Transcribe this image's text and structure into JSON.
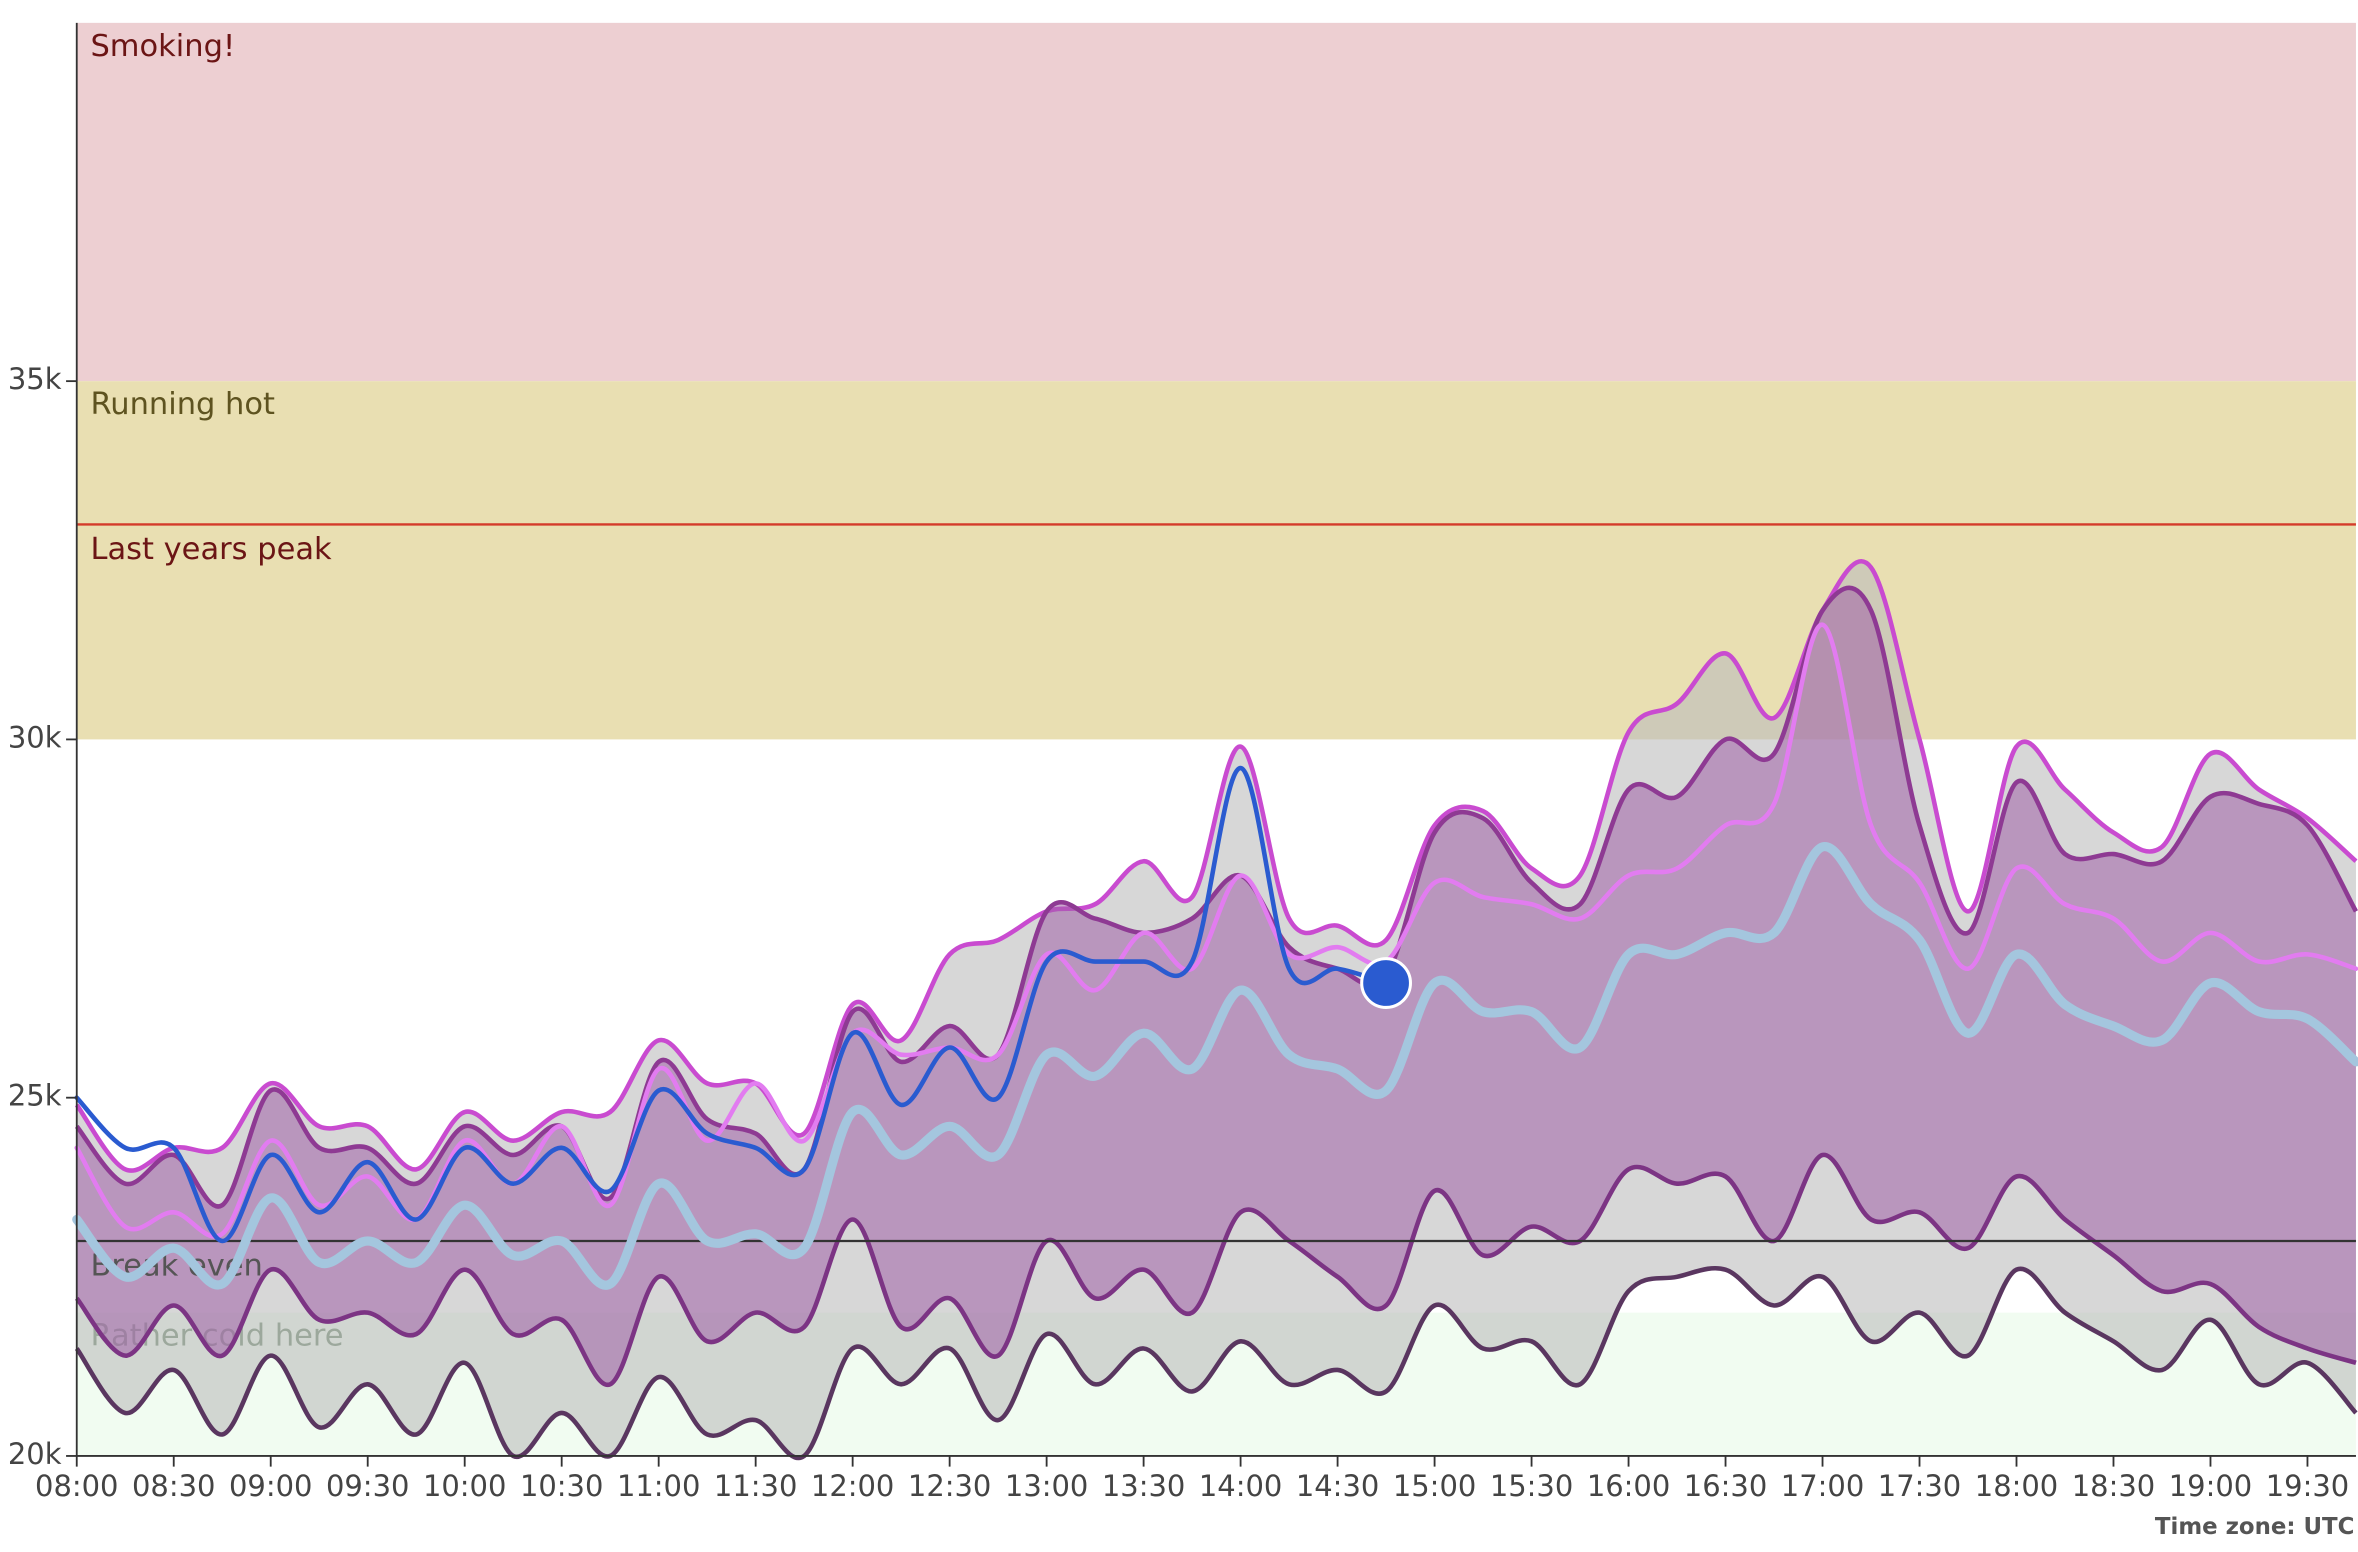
{
  "chart_data": {
    "type": "line",
    "x": [
      "08:00",
      "08:15",
      "08:30",
      "08:45",
      "09:00",
      "09:15",
      "09:30",
      "09:45",
      "10:00",
      "10:15",
      "10:30",
      "10:45",
      "11:00",
      "11:15",
      "11:30",
      "11:45",
      "12:00",
      "12:15",
      "12:30",
      "12:45",
      "13:00",
      "13:15",
      "13:30",
      "13:45",
      "14:00",
      "14:15",
      "14:30",
      "14:45",
      "15:00",
      "15:15",
      "15:30",
      "15:45",
      "16:00",
      "16:15",
      "16:30",
      "16:45",
      "17:00",
      "17:15",
      "17:30",
      "17:45",
      "18:00",
      "18:15",
      "18:30",
      "18:45",
      "19:00",
      "19:15",
      "19:30",
      "19:45"
    ],
    "xlim": [
      "08:00",
      "19:45"
    ],
    "xticks": [
      "08:00",
      "08:30",
      "09:00",
      "09:30",
      "10:00",
      "10:30",
      "11:00",
      "11:30",
      "12:00",
      "12:30",
      "13:00",
      "13:30",
      "14:00",
      "14:30",
      "15:00",
      "15:30",
      "16:00",
      "16:30",
      "17:00",
      "17:30",
      "18:00",
      "18:30",
      "19:00",
      "19:30"
    ],
    "ylim": [
      20000,
      40000
    ],
    "yticks": [
      {
        "value": 20000,
        "label": "20k"
      },
      {
        "value": 25000,
        "label": "25k"
      },
      {
        "value": 30000,
        "label": "30k"
      },
      {
        "value": 35000,
        "label": "35k"
      }
    ],
    "bands": [
      {
        "label": "Smoking!",
        "from": 35000,
        "to": 40000,
        "color": "#edcfd2",
        "text_color": "#6b1515"
      },
      {
        "label": "Running hot",
        "from": 30000,
        "to": 35000,
        "color": "#e9dfb2",
        "text_color": "#5e5320"
      },
      {
        "label": "Rather cold here",
        "from": 20000,
        "to": 22000,
        "color": "#f1fcf1",
        "text_color": "#6d8a6d"
      }
    ],
    "lines": [
      {
        "label": "Last years peak",
        "value": 33000,
        "color": "#d43b2a",
        "text_color": "#6b1515"
      },
      {
        "label": "Break even",
        "value": 23000,
        "color": "#333333",
        "text_color": "#555555"
      }
    ],
    "areas": [
      {
        "color": "#bdbdbd",
        "opacity": 0.6,
        "upper_color": "#c94bd0",
        "lower_color": "#5a3660",
        "upper": [
          24900,
          24000,
          24300,
          24300,
          25200,
          24600,
          24600,
          24000,
          24800,
          24400,
          24800,
          24800,
          25800,
          25200,
          25200,
          24500,
          26300,
          25800,
          27000,
          27200,
          27600,
          27700,
          28300,
          27800,
          29900,
          27500,
          27400,
          27200,
          28800,
          29000,
          28200,
          28100,
          30100,
          30500,
          31200,
          30300,
          31800,
          32400,
          30000,
          27600,
          29900,
          29300,
          28700,
          28500,
          29800,
          29300,
          28900,
          28300
        ],
        "lower": [
          21500,
          20600,
          21200,
          20300,
          21400,
          20400,
          21000,
          20300,
          21300,
          20000,
          20600,
          20000,
          21100,
          20300,
          20500,
          20000,
          21500,
          21000,
          21500,
          20500,
          21700,
          21000,
          21500,
          20900,
          21600,
          21000,
          21200,
          20900,
          22100,
          21500,
          21600,
          21000,
          22300,
          22500,
          22600,
          22100,
          22500,
          21600,
          22000,
          21400,
          22600,
          22000,
          21600,
          21200,
          21900,
          21000,
          21300,
          20600
        ]
      },
      {
        "color": "#a061a8",
        "opacity": 0.55,
        "upper_color": "#8e3a93",
        "lower_color": "#7c3484",
        "upper": [
          24600,
          23800,
          24200,
          23500,
          25100,
          24300,
          24300,
          23800,
          24600,
          24200,
          24600,
          23600,
          25500,
          24700,
          24500,
          24000,
          26200,
          25500,
          26000,
          25600,
          27600,
          27500,
          27300,
          27500,
          28100,
          27100,
          26800,
          26700,
          28700,
          28900,
          28000,
          27700,
          29300,
          29200,
          30000,
          29800,
          31800,
          31800,
          28800,
          27300,
          29400,
          28400,
          28400,
          28300,
          29200,
          29100,
          28800,
          27600
        ],
        "lower": [
          22200,
          21400,
          22100,
          21400,
          22600,
          21900,
          22000,
          21700,
          22600,
          21700,
          21900,
          21000,
          22500,
          21600,
          22000,
          21800,
          23300,
          21800,
          22200,
          21400,
          23000,
          22200,
          22600,
          22000,
          23400,
          23000,
          22500,
          22100,
          23700,
          22800,
          23200,
          23000,
          24000,
          23800,
          23900,
          23000,
          24200,
          23300,
          23400,
          22900,
          23900,
          23300,
          22800,
          22300,
          22400,
          21800,
          21500,
          21300
        ]
      }
    ],
    "series": [
      {
        "color": "#e27cf0",
        "line_width": 3,
        "values": [
          24300,
          23200,
          23400,
          23100,
          24400,
          23500,
          23900,
          23300,
          24400,
          23800,
          24600,
          23500,
          25400,
          24400,
          25200,
          24400,
          25900,
          25600,
          25700,
          25600,
          27000,
          26500,
          27300,
          26800,
          28100,
          27000,
          27100,
          26900,
          28000,
          27800,
          27700,
          27500,
          28100,
          28200,
          28800,
          29100,
          31600,
          28800,
          28000,
          26800,
          28200,
          27700,
          27500,
          26900,
          27300,
          26900,
          27000,
          26800
        ]
      },
      {
        "color": "#a4c6de",
        "line_width": 6,
        "values": [
          23300,
          22500,
          22900,
          22400,
          23600,
          22700,
          23000,
          22700,
          23500,
          22800,
          23000,
          22400,
          23800,
          23000,
          23100,
          22900,
          24800,
          24200,
          24600,
          24200,
          25600,
          25300,
          25900,
          25400,
          26500,
          25600,
          25400,
          25100,
          26600,
          26200,
          26200,
          25700,
          27000,
          27000,
          27300,
          27300,
          28500,
          27700,
          27200,
          25900,
          27000,
          26300,
          26000,
          25800,
          26600,
          26200,
          26100,
          25500
        ]
      },
      {
        "color": "#2a5bd0",
        "line_width": 3,
        "end_marker": true,
        "values": [
          25000,
          24300,
          24300,
          23000,
          24200,
          23400,
          24100,
          23300,
          24300,
          23800,
          24300,
          23700,
          25100,
          24500,
          24300,
          24000,
          25900,
          24900,
          25700,
          25000,
          26900,
          26900,
          26900,
          26900,
          29600,
          26800,
          26800,
          26600,
          null,
          null,
          null,
          null,
          null,
          null,
          null,
          null,
          null,
          null,
          null,
          null,
          null,
          null,
          null,
          null,
          null,
          null,
          null,
          null
        ]
      }
    ],
    "footnote": "Time zone: UTC"
  }
}
